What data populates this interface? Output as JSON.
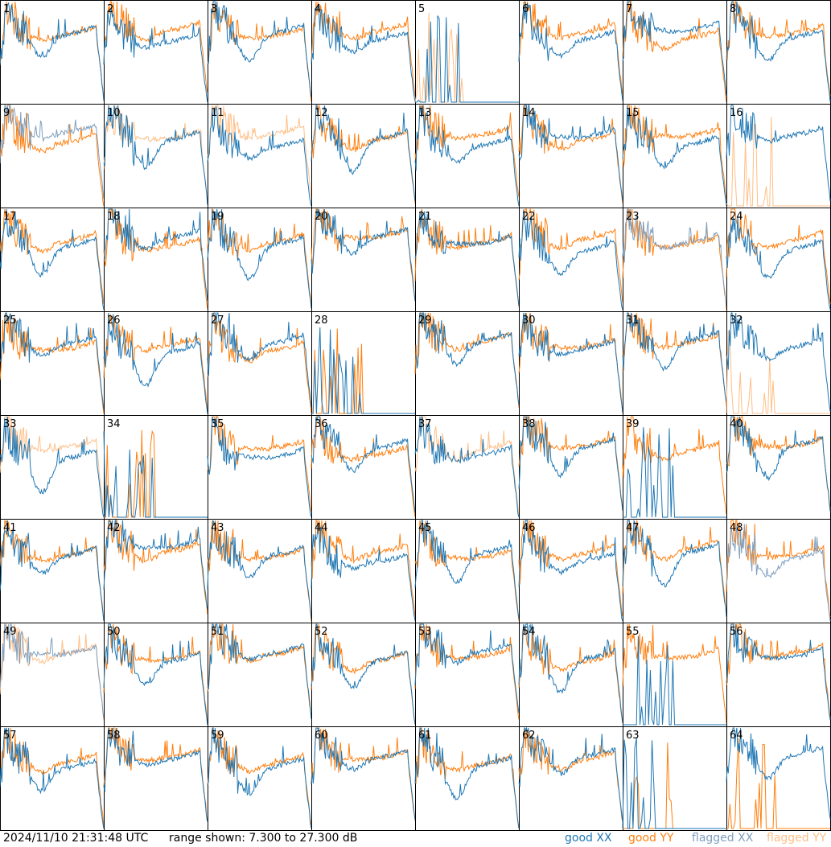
{
  "chart_data": {
    "type": "line",
    "layout": "small-multiples 8x8",
    "panels": [
      1,
      2,
      3,
      4,
      5,
      6,
      7,
      8,
      9,
      10,
      11,
      12,
      13,
      14,
      15,
      16,
      17,
      18,
      19,
      20,
      21,
      22,
      23,
      24,
      25,
      26,
      27,
      28,
      29,
      30,
      31,
      32,
      33,
      34,
      35,
      36,
      37,
      38,
      39,
      40,
      41,
      42,
      43,
      44,
      45,
      46,
      47,
      48,
      49,
      50,
      51,
      52,
      53,
      54,
      55,
      56,
      57,
      58,
      59,
      60,
      61,
      62,
      63,
      64
    ],
    "range_db": [
      7.3,
      27.3
    ],
    "series": [
      {
        "name": "good XX",
        "color": "#1f77b4"
      },
      {
        "name": "good YY",
        "color": "#ff7f0e"
      },
      {
        "name": "flagged XX",
        "color": "#7f9fbf"
      },
      {
        "name": "flagged YY",
        "color": "#ffbf87"
      }
    ],
    "flagged": {
      "xx": [
        9,
        23,
        48,
        49
      ],
      "yy": [
        5,
        10,
        11,
        16,
        32,
        33,
        37,
        49
      ]
    },
    "dead": {
      "xx": [
        5,
        28,
        34,
        39,
        55,
        63
      ],
      "yy": [
        5,
        16,
        28,
        32,
        34,
        63,
        64
      ]
    }
  },
  "footer": {
    "timestamp": "2024/11/10 21:31:48 UTC",
    "range": "range shown: 7.300 to 27.300 dB"
  },
  "legend": [
    "good XX",
    "good YY",
    "flagged XX",
    "flagged YY"
  ],
  "colors": {
    "good_xx": "#1f77b4",
    "good_yy": "#ff7f0e",
    "flagged_xx": "#7f9fbf",
    "flagged_yy": "#ffbf87"
  }
}
